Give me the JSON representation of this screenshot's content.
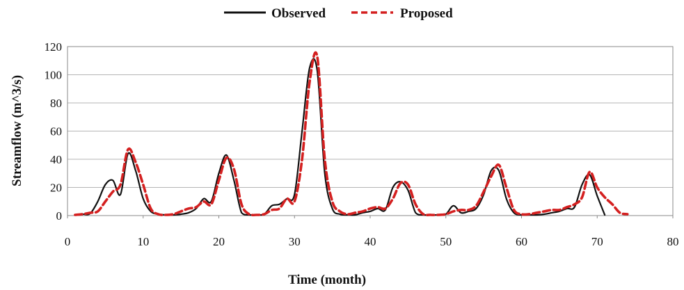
{
  "chart_data": {
    "type": "line",
    "title": "",
    "xlabel": "Time (month)",
    "ylabel": "Streamflow (m^3/s)",
    "xlim": [
      0,
      80
    ],
    "ylim": [
      0,
      120
    ],
    "x_ticks": [
      "0",
      "10",
      "20",
      "30",
      "40",
      "50",
      "60",
      "70",
      "80"
    ],
    "y_ticks": [
      "0",
      "20",
      "40",
      "60",
      "80",
      "100",
      "120"
    ],
    "grid": "horizontal",
    "legend_position": "top-center",
    "series": [
      {
        "name": "Observed",
        "color": "#111111",
        "style": "solid",
        "x": [
          1,
          2,
          3,
          4,
          5,
          6,
          7,
          8,
          9,
          10,
          11,
          12,
          13,
          14,
          15,
          16,
          17,
          18,
          19,
          20,
          21,
          22,
          23,
          24,
          25,
          26,
          27,
          28,
          29,
          30,
          31,
          32,
          33,
          34,
          35,
          36,
          37,
          38,
          39,
          40,
          41,
          42,
          43,
          44,
          45,
          46,
          47,
          48,
          49,
          50,
          51,
          52,
          53,
          54,
          55,
          56,
          57,
          58,
          59,
          60,
          61,
          62,
          63,
          64,
          65,
          66,
          67,
          68,
          69,
          70,
          71
        ],
        "values": [
          0.5,
          1,
          1.5,
          10,
          22,
          25,
          15,
          44,
          32,
          12,
          3,
          1,
          0.5,
          0.5,
          1,
          2,
          5,
          12,
          10,
          30,
          43,
          25,
          2,
          0.5,
          0.5,
          1,
          7,
          8,
          12,
          15,
          60,
          105,
          103,
          30,
          5,
          1,
          0.5,
          0.5,
          2,
          3,
          5,
          4,
          20,
          24,
          18,
          2,
          0.5,
          0.5,
          0.5,
          1,
          7,
          2,
          3,
          5,
          15,
          32,
          32,
          12,
          2,
          0.5,
          0.5,
          0.5,
          1,
          2,
          3,
          5,
          6,
          22,
          29,
          14,
          0.5
        ]
      },
      {
        "name": "Proposed",
        "color": "#d42020",
        "style": "dashed",
        "x": [
          1,
          2,
          3,
          4,
          5,
          6,
          7,
          8,
          9,
          10,
          11,
          12,
          13,
          14,
          15,
          16,
          17,
          18,
          19,
          20,
          21,
          22,
          23,
          24,
          25,
          26,
          27,
          28,
          29,
          30,
          31,
          32,
          33,
          34,
          35,
          36,
          37,
          38,
          39,
          40,
          41,
          42,
          43,
          44,
          45,
          46,
          47,
          48,
          49,
          50,
          51,
          52,
          53,
          54,
          55,
          56,
          57,
          58,
          59,
          60,
          61,
          62,
          63,
          64,
          65,
          66,
          67,
          68,
          69,
          70,
          71,
          72,
          73,
          74
        ],
        "values": [
          0.5,
          1,
          2,
          3,
          10,
          17,
          22,
          47,
          38,
          22,
          5,
          1,
          0.5,
          1,
          3,
          5,
          6,
          10,
          8,
          25,
          41,
          33,
          8,
          1,
          0.5,
          1,
          4,
          5,
          12,
          10,
          40,
          95,
          113,
          40,
          10,
          3,
          1,
          2,
          3,
          5,
          6,
          5,
          12,
          23,
          22,
          8,
          1,
          0.5,
          0.5,
          1,
          3,
          4,
          4,
          7,
          17,
          28,
          36,
          20,
          4,
          1,
          1,
          2,
          3,
          4,
          4,
          6,
          8,
          13,
          31,
          20,
          13,
          8,
          2,
          1
        ]
      }
    ]
  }
}
